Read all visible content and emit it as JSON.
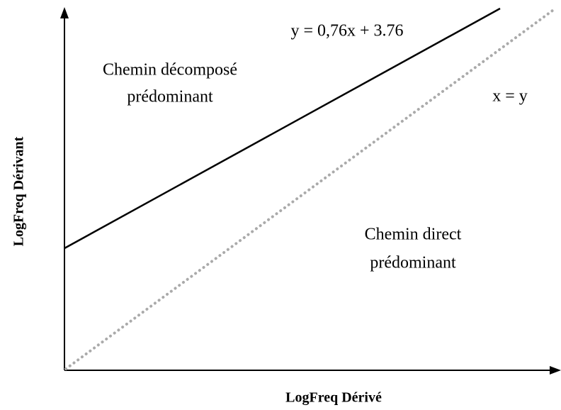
{
  "equation_label": "y = 0,76x + 3.76",
  "identity_label": "x = y",
  "upper_region": {
    "line1": "Chemin décomposé",
    "line2": "prédominant"
  },
  "lower_region": {
    "line1": "Chemin direct",
    "line2": "prédominant"
  },
  "x_axis_label": "LogFreq Dérivé",
  "y_axis_label": "LogFreq Dérivant"
}
